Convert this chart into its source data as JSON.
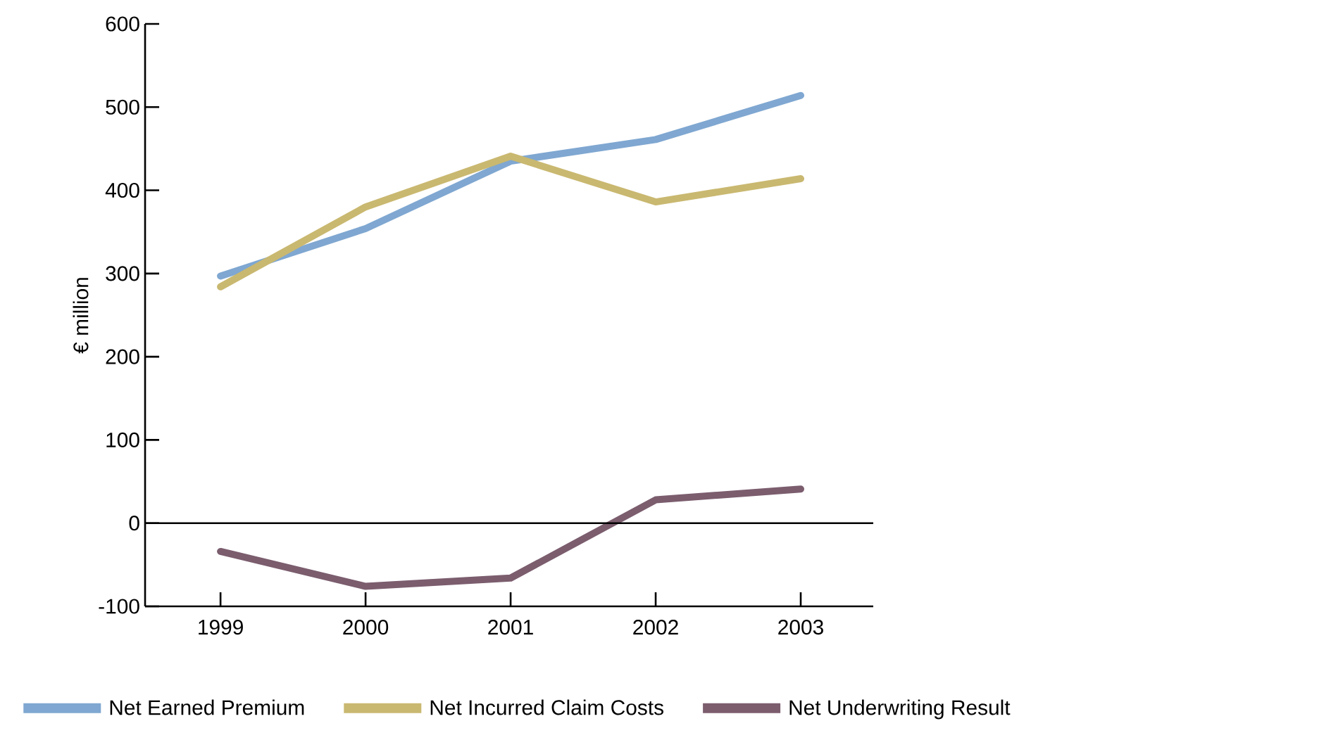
{
  "chart_data": {
    "type": "line",
    "ylabel": "€ million",
    "categories": [
      "1999",
      "2000",
      "2001",
      "2002",
      "2003"
    ],
    "ylim": [
      -100,
      600
    ],
    "yticks": [
      -100,
      0,
      100,
      200,
      300,
      400,
      500,
      600
    ],
    "ref_lines": [
      {
        "axis": "y",
        "value": 0
      }
    ],
    "legend": "bottom",
    "series": [
      {
        "name": "Net Earned Premium",
        "color": "#7fa7d1",
        "values": [
          297,
          354,
          435,
          461,
          514
        ]
      },
      {
        "name": "Net Incurred Claim Costs",
        "color": "#c9b870",
        "values": [
          284,
          380,
          441,
          386,
          414
        ]
      },
      {
        "name": "Net Underwriting Result",
        "color": "#7b5d6e",
        "values": [
          -34,
          -76,
          -66,
          28,
          41
        ]
      }
    ]
  }
}
